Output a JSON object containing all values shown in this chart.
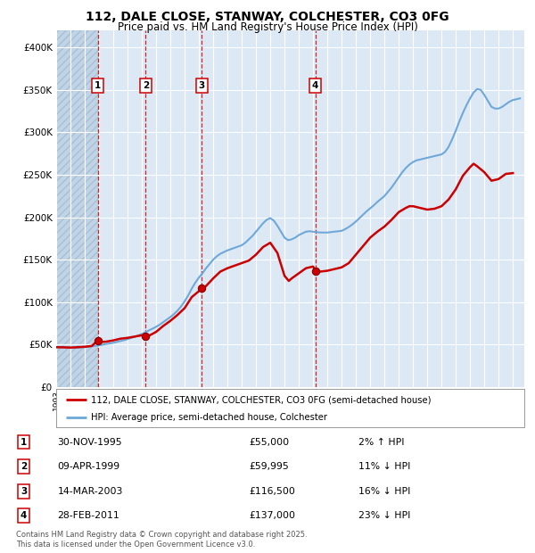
{
  "title": "112, DALE CLOSE, STANWAY, COLCHESTER, CO3 0FG",
  "subtitle": "Price paid vs. HM Land Registry's House Price Index (HPI)",
  "footnote": "Contains HM Land Registry data © Crown copyright and database right 2025.\nThis data is licensed under the Open Government Licence v3.0.",
  "legend_line1": "112, DALE CLOSE, STANWAY, COLCHESTER, CO3 0FG (semi-detached house)",
  "legend_line2": "HPI: Average price, semi-detached house, Colchester",
  "transactions": [
    {
      "num": 1,
      "date": "30-NOV-1995",
      "price": 55000,
      "pct": "2%",
      "dir": "↑",
      "year": 1995.92
    },
    {
      "num": 2,
      "date": "09-APR-1999",
      "price": 59995,
      "pct": "11%",
      "dir": "↓",
      "year": 1999.27
    },
    {
      "num": 3,
      "date": "14-MAR-2003",
      "price": 116500,
      "pct": "16%",
      "dir": "↓",
      "year": 2003.2
    },
    {
      "num": 4,
      "date": "28-FEB-2011",
      "price": 137000,
      "pct": "23%",
      "dir": "↓",
      "year": 2011.16
    }
  ],
  "hpi_color": "#6fa8d8",
  "price_color": "#cc0000",
  "dot_color": "#cc0000",
  "vline_color": "#cc0000",
  "bg_chart": "#dce9f5",
  "bg_hatch_color": "#c0d4e8",
  "ylim": [
    0,
    420000
  ],
  "yticks": [
    0,
    50000,
    100000,
    150000,
    200000,
    250000,
    300000,
    350000,
    400000
  ],
  "xlim_start": 1993.0,
  "xlim_end": 2025.8,
  "hpi_data": [
    [
      1993.0,
      47000
    ],
    [
      1993.25,
      47200
    ],
    [
      1993.5,
      47100
    ],
    [
      1993.75,
      46800
    ],
    [
      1994.0,
      46500
    ],
    [
      1994.25,
      46300
    ],
    [
      1994.5,
      46400
    ],
    [
      1994.75,
      46700
    ],
    [
      1995.0,
      47000
    ],
    [
      1995.25,
      47400
    ],
    [
      1995.5,
      48000
    ],
    [
      1995.75,
      48600
    ],
    [
      1996.0,
      49200
    ],
    [
      1996.25,
      50000
    ],
    [
      1996.5,
      50800
    ],
    [
      1996.75,
      51400
    ],
    [
      1997.0,
      52200
    ],
    [
      1997.25,
      53200
    ],
    [
      1997.5,
      54200
    ],
    [
      1997.75,
      55200
    ],
    [
      1998.0,
      56500
    ],
    [
      1998.25,
      57800
    ],
    [
      1998.5,
      59200
    ],
    [
      1998.75,
      60800
    ],
    [
      1999.0,
      62500
    ],
    [
      1999.25,
      64500
    ],
    [
      1999.5,
      66800
    ],
    [
      1999.75,
      68800
    ],
    [
      2000.0,
      71000
    ],
    [
      2000.25,
      73500
    ],
    [
      2000.5,
      76500
    ],
    [
      2000.75,
      79500
    ],
    [
      2001.0,
      82500
    ],
    [
      2001.25,
      86000
    ],
    [
      2001.5,
      90000
    ],
    [
      2001.75,
      95000
    ],
    [
      2002.0,
      101000
    ],
    [
      2002.25,
      108000
    ],
    [
      2002.5,
      116000
    ],
    [
      2002.75,
      123000
    ],
    [
      2003.0,
      129000
    ],
    [
      2003.25,
      134000
    ],
    [
      2003.5,
      140000
    ],
    [
      2003.75,
      145000
    ],
    [
      2004.0,
      150000
    ],
    [
      2004.25,
      154000
    ],
    [
      2004.5,
      157000
    ],
    [
      2004.75,
      159000
    ],
    [
      2005.0,
      161000
    ],
    [
      2005.25,
      162500
    ],
    [
      2005.5,
      164000
    ],
    [
      2005.75,
      165500
    ],
    [
      2006.0,
      167000
    ],
    [
      2006.25,
      170000
    ],
    [
      2006.5,
      174000
    ],
    [
      2006.75,
      178000
    ],
    [
      2007.0,
      183000
    ],
    [
      2007.25,
      188000
    ],
    [
      2007.5,
      193000
    ],
    [
      2007.75,
      197000
    ],
    [
      2008.0,
      199000
    ],
    [
      2008.25,
      196000
    ],
    [
      2008.5,
      190000
    ],
    [
      2008.75,
      183000
    ],
    [
      2009.0,
      176000
    ],
    [
      2009.25,
      173000
    ],
    [
      2009.5,
      174000
    ],
    [
      2009.75,
      176000
    ],
    [
      2010.0,
      179000
    ],
    [
      2010.25,
      181000
    ],
    [
      2010.5,
      183000
    ],
    [
      2010.75,
      183500
    ],
    [
      2011.0,
      183000
    ],
    [
      2011.25,
      182500
    ],
    [
      2011.5,
      182000
    ],
    [
      2011.75,
      182000
    ],
    [
      2012.0,
      182000
    ],
    [
      2012.25,
      182500
    ],
    [
      2012.5,
      183000
    ],
    [
      2012.75,
      183500
    ],
    [
      2013.0,
      184000
    ],
    [
      2013.25,
      186000
    ],
    [
      2013.5,
      188500
    ],
    [
      2013.75,
      191500
    ],
    [
      2014.0,
      195000
    ],
    [
      2014.25,
      199000
    ],
    [
      2014.5,
      203000
    ],
    [
      2014.75,
      207000
    ],
    [
      2015.0,
      210500
    ],
    [
      2015.25,
      214000
    ],
    [
      2015.5,
      218000
    ],
    [
      2015.75,
      221500
    ],
    [
      2016.0,
      225000
    ],
    [
      2016.25,
      230000
    ],
    [
      2016.5,
      235000
    ],
    [
      2016.75,
      241000
    ],
    [
      2017.0,
      247000
    ],
    [
      2017.25,
      253000
    ],
    [
      2017.5,
      258000
    ],
    [
      2017.75,
      262000
    ],
    [
      2018.0,
      265000
    ],
    [
      2018.25,
      267000
    ],
    [
      2018.5,
      268000
    ],
    [
      2018.75,
      269000
    ],
    [
      2019.0,
      270000
    ],
    [
      2019.25,
      271000
    ],
    [
      2019.5,
      272000
    ],
    [
      2019.75,
      273000
    ],
    [
      2020.0,
      274000
    ],
    [
      2020.25,
      277000
    ],
    [
      2020.5,
      283000
    ],
    [
      2020.75,
      292000
    ],
    [
      2021.0,
      302000
    ],
    [
      2021.25,
      313000
    ],
    [
      2021.5,
      323000
    ],
    [
      2021.75,
      332000
    ],
    [
      2022.0,
      340000
    ],
    [
      2022.25,
      347000
    ],
    [
      2022.5,
      351000
    ],
    [
      2022.75,
      350000
    ],
    [
      2023.0,
      344000
    ],
    [
      2023.25,
      337000
    ],
    [
      2023.5,
      330000
    ],
    [
      2023.75,
      328000
    ],
    [
      2024.0,
      328000
    ],
    [
      2024.25,
      330000
    ],
    [
      2024.5,
      333000
    ],
    [
      2024.75,
      336000
    ],
    [
      2025.0,
      338000
    ],
    [
      2025.5,
      340000
    ]
  ],
  "price_data": [
    [
      1993.0,
      47000
    ],
    [
      1993.5,
      46800
    ],
    [
      1994.0,
      46500
    ],
    [
      1994.5,
      47000
    ],
    [
      1995.0,
      47500
    ],
    [
      1995.5,
      48500
    ],
    [
      1995.92,
      55000
    ],
    [
      1996.0,
      53000
    ],
    [
      1996.5,
      53500
    ],
    [
      1997.0,
      55000
    ],
    [
      1997.5,
      57000
    ],
    [
      1998.0,
      58000
    ],
    [
      1998.5,
      59500
    ],
    [
      1999.0,
      61000
    ],
    [
      1999.27,
      59995
    ],
    [
      1999.5,
      60500
    ],
    [
      2000.0,
      65000
    ],
    [
      2000.5,
      72000
    ],
    [
      2001.0,
      78000
    ],
    [
      2001.5,
      85000
    ],
    [
      2002.0,
      93000
    ],
    [
      2002.5,
      106000
    ],
    [
      2003.0,
      113000
    ],
    [
      2003.2,
      116500
    ],
    [
      2003.5,
      119000
    ],
    [
      2004.0,
      128000
    ],
    [
      2004.5,
      136000
    ],
    [
      2005.0,
      140000
    ],
    [
      2005.5,
      143000
    ],
    [
      2006.0,
      146000
    ],
    [
      2006.5,
      149000
    ],
    [
      2007.0,
      156000
    ],
    [
      2007.5,
      165000
    ],
    [
      2008.0,
      170000
    ],
    [
      2008.5,
      158000
    ],
    [
      2009.0,
      131000
    ],
    [
      2009.3,
      125000
    ],
    [
      2009.5,
      128000
    ],
    [
      2010.0,
      134000
    ],
    [
      2010.5,
      140000
    ],
    [
      2011.0,
      142000
    ],
    [
      2011.16,
      137000
    ],
    [
      2011.5,
      136000
    ],
    [
      2012.0,
      137000
    ],
    [
      2012.5,
      139000
    ],
    [
      2013.0,
      141000
    ],
    [
      2013.5,
      146000
    ],
    [
      2014.0,
      156000
    ],
    [
      2014.5,
      166000
    ],
    [
      2015.0,
      176000
    ],
    [
      2015.5,
      183000
    ],
    [
      2016.0,
      189000
    ],
    [
      2016.5,
      197000
    ],
    [
      2017.0,
      206000
    ],
    [
      2017.5,
      211000
    ],
    [
      2017.75,
      213000
    ],
    [
      2018.0,
      213000
    ],
    [
      2018.5,
      211000
    ],
    [
      2019.0,
      209000
    ],
    [
      2019.5,
      210000
    ],
    [
      2020.0,
      213000
    ],
    [
      2020.5,
      221000
    ],
    [
      2021.0,
      233000
    ],
    [
      2021.5,
      249000
    ],
    [
      2022.0,
      259000
    ],
    [
      2022.25,
      263000
    ],
    [
      2022.5,
      260000
    ],
    [
      2023.0,
      253000
    ],
    [
      2023.5,
      243000
    ],
    [
      2024.0,
      245000
    ],
    [
      2024.5,
      251000
    ],
    [
      2025.0,
      252000
    ]
  ]
}
